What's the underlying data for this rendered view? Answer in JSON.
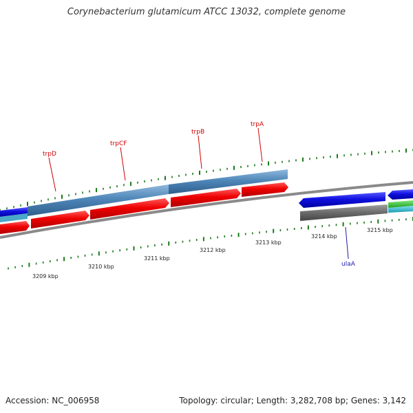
{
  "header": {
    "title": "Corynebacterium glutamicum ATCC 13032, complete genome"
  },
  "footer": {
    "accession": "Accession: NC_006958",
    "summary": "Topology: circular; Length: 3,282,708 bp; Genes: 3,142"
  },
  "ruler": {
    "labels": [
      "3209 kbp",
      "3210 kbp",
      "3211 kbp",
      "3212 kbp",
      "3213 kbp",
      "3214 kbp",
      "3215 kbp"
    ]
  },
  "genes": {
    "forward": [
      "trpD",
      "trpCF",
      "trpB",
      "trpA"
    ],
    "reverse": [
      "ulaA"
    ]
  },
  "colors": {
    "title": "#333333",
    "forward_gene": "#cc0000",
    "reverse_gene": "#1a1aaa",
    "tick": "#1a7a1a",
    "cds_red": "#e80000",
    "cds_blue": "#1010e0",
    "gene_steel": "#4f87b9",
    "gene_grey": "#666666"
  }
}
